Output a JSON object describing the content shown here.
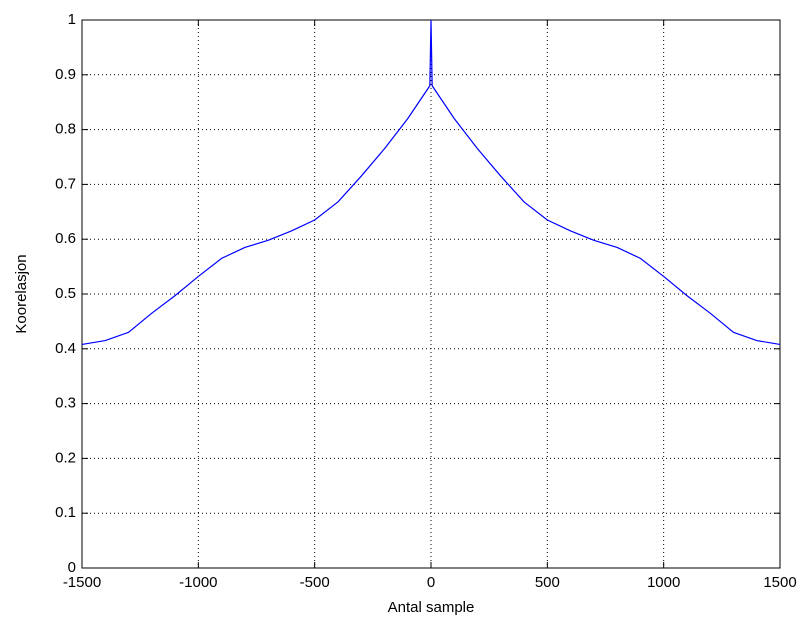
{
  "chart_data": {
    "type": "line",
    "xlabel": "Antal sample",
    "ylabel": "Koorelasjon",
    "x": [
      -1500,
      -1400,
      -1300,
      -1200,
      -1100,
      -1000,
      -900,
      -800,
      -700,
      -600,
      -500,
      -400,
      -300,
      -200,
      -100,
      -5,
      0,
      5,
      100,
      200,
      300,
      400,
      500,
      600,
      700,
      800,
      900,
      1000,
      1100,
      1200,
      1300,
      1400,
      1500
    ],
    "values": [
      0.408,
      0.415,
      0.43,
      0.465,
      0.497,
      0.532,
      0.565,
      0.585,
      0.598,
      0.615,
      0.635,
      0.668,
      0.715,
      0.765,
      0.82,
      0.88,
      1,
      0.88,
      0.82,
      0.765,
      0.715,
      0.668,
      0.635,
      0.615,
      0.598,
      0.585,
      0.565,
      0.532,
      0.497,
      0.465,
      0.43,
      0.415,
      0.408
    ],
    "color": "#0000ff",
    "xlim": [
      -1500,
      1500
    ],
    "xticks": [
      -1500,
      -1000,
      -500,
      0,
      500,
      1000,
      1500
    ],
    "ylim": [
      0,
      1
    ],
    "yticks": [
      0,
      0.1,
      0.2,
      0.3,
      0.4,
      0.5,
      0.6,
      0.7,
      0.8,
      0.9,
      1
    ],
    "grid": true
  }
}
